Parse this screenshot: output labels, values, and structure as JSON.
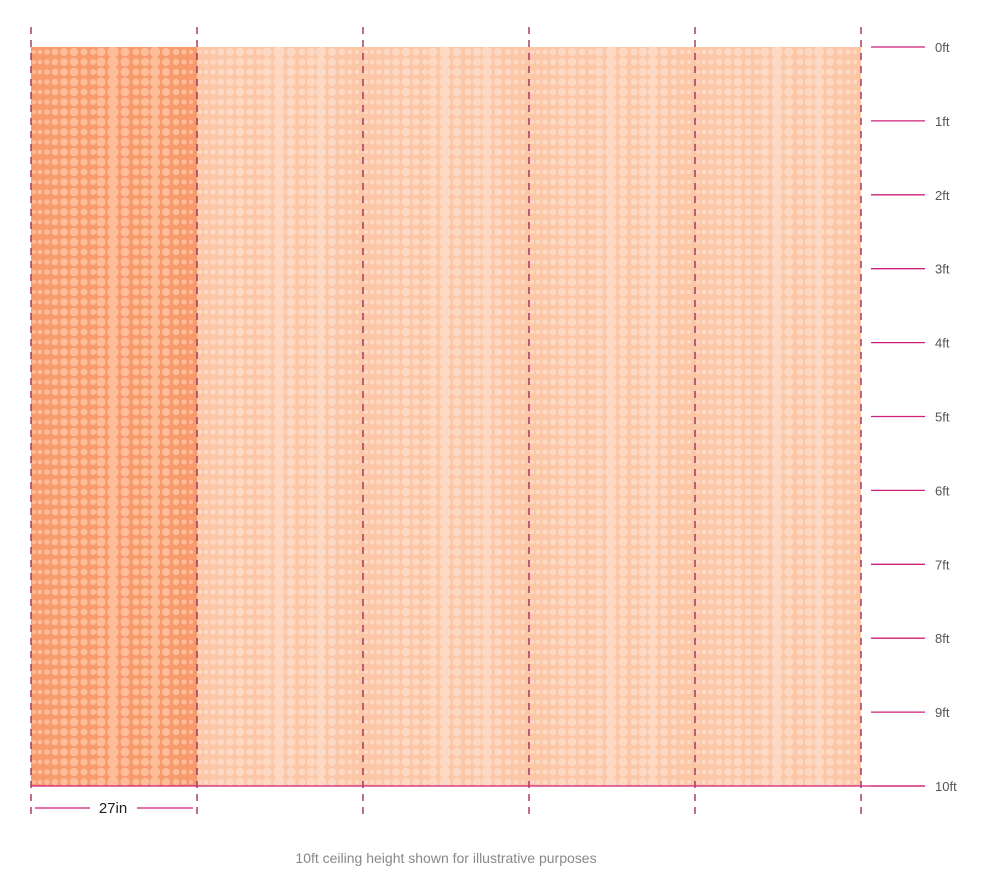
{
  "colors": {
    "panel_highlight": "#f79a6c",
    "panel_base": "#fcc7a7",
    "dot_on_highlight": "#fdbd99",
    "dot_on_base": "#fdd8c3",
    "ruler": "#d01f7a",
    "seam": "#a0305e"
  },
  "wallpaper": {
    "panel_count": 5,
    "highlighted_panel": 1,
    "pattern": "graduated dot stripes"
  },
  "height_ruler": {
    "labels": [
      "0ft",
      "1ft",
      "2ft",
      "3ft",
      "4ft",
      "5ft",
      "6ft",
      "7ft",
      "8ft",
      "9ft",
      "10ft"
    ]
  },
  "panel_width": {
    "label": "27in"
  },
  "caption": "10ft ceiling height shown for illustrative purposes"
}
